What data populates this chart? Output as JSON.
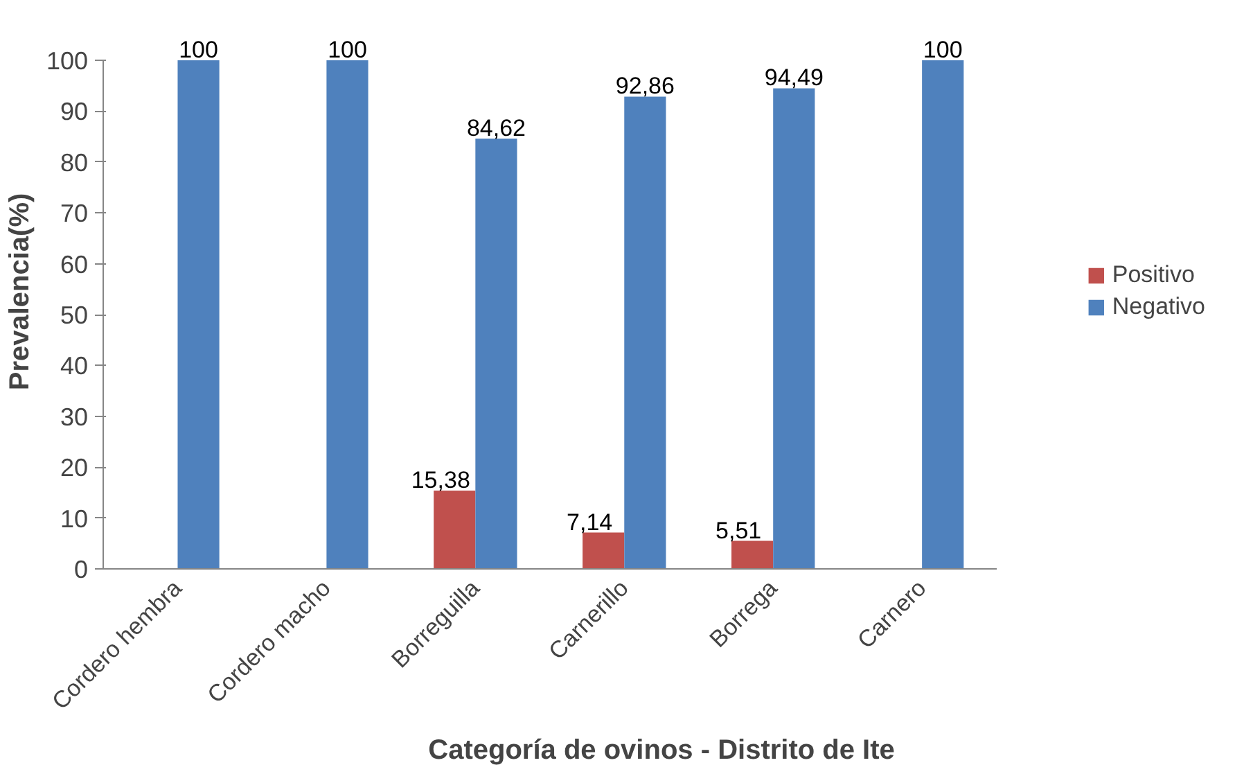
{
  "chart_data": {
    "type": "bar",
    "xlabel": "Categoría de ovinos - Distrito de Ite",
    "ylabel": "Prevalencia(%)",
    "categories": [
      "Cordero hembra",
      "Cordero macho",
      "Borreguilla",
      "Carnerillo",
      "Borrega",
      "Carnero"
    ],
    "series": [
      {
        "name": "Positivo",
        "color": "#c0504d",
        "values": [
          0,
          0,
          15.38,
          7.14,
          5.51,
          0
        ],
        "value_labels": [
          null,
          null,
          "15,38",
          "7,14",
          "5,51",
          null
        ]
      },
      {
        "name": "Negativo",
        "color": "#4f81bd",
        "values": [
          100,
          100,
          84.62,
          92.86,
          94.49,
          100
        ],
        "value_labels": [
          "100",
          "100",
          "84,62",
          "92,86",
          "94,49",
          "100"
        ]
      }
    ],
    "ylim": [
      0,
      100
    ],
    "yticks": [
      0,
      10,
      20,
      30,
      40,
      50,
      60,
      70,
      80,
      90,
      100
    ],
    "grid": false,
    "legend": "right"
  }
}
